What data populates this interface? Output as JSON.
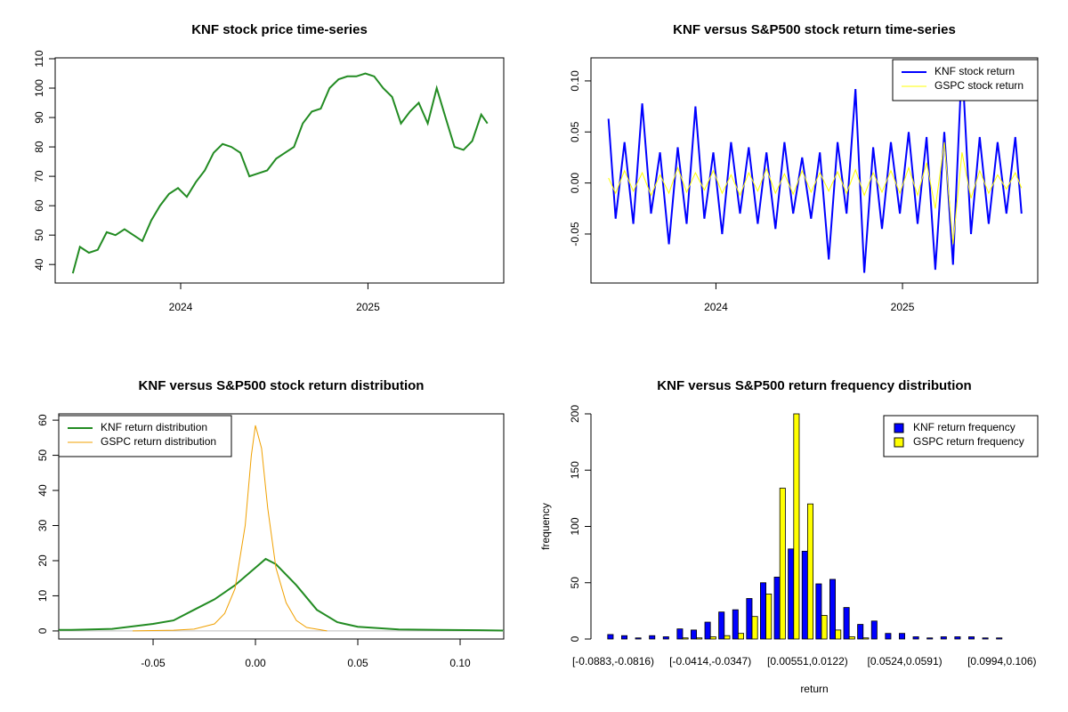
{
  "chart_data": [
    {
      "type": "line",
      "title": "KNF stock price time-series",
      "color": "#228b22",
      "x": [
        2023.424,
        2023.462,
        2023.51,
        2023.557,
        2023.605,
        2023.652,
        2023.7,
        2023.748,
        2023.795,
        2023.843,
        2023.89,
        2023.938,
        2023.986,
        2024.033,
        2024.081,
        2024.129,
        2024.176,
        2024.224,
        2024.271,
        2024.319,
        2024.367,
        2024.414,
        2024.462,
        2024.51,
        2024.557,
        2024.605,
        2024.652,
        2024.7,
        2024.748,
        2024.795,
        2024.843,
        2024.89,
        2024.938,
        2024.986,
        2025.033,
        2025.081,
        2025.129,
        2025.176,
        2025.224,
        2025.271,
        2025.319,
        2025.367,
        2025.414,
        2025.462,
        2025.51,
        2025.557,
        2025.605,
        2025.638
      ],
      "values": [
        37,
        46,
        44,
        45,
        51,
        50,
        52,
        50,
        48,
        55,
        60,
        64,
        66,
        63,
        68,
        72,
        78,
        81,
        80,
        78,
        70,
        71,
        72,
        76,
        78,
        80,
        88,
        92,
        93,
        100,
        103,
        104,
        104,
        105,
        104,
        100,
        97,
        88,
        92,
        95,
        88,
        100,
        90,
        80,
        79,
        82,
        91,
        88
      ],
      "xlim": [
        2023.33,
        2025.725
      ],
      "xticks": [
        2024,
        2025
      ],
      "ylim": [
        33.7,
        110.3
      ],
      "yticks": [
        40,
        50,
        60,
        70,
        80,
        90,
        100,
        110
      ]
    },
    {
      "type": "line",
      "title": "KNF versus S&P500 stock return time-series",
      "legend": "topright",
      "x": [
        2023.424,
        2023.462,
        2023.51,
        2023.557,
        2023.605,
        2023.652,
        2023.7,
        2023.748,
        2023.795,
        2023.843,
        2023.89,
        2023.938,
        2023.986,
        2024.033,
        2024.081,
        2024.129,
        2024.176,
        2024.224,
        2024.271,
        2024.319,
        2024.367,
        2024.414,
        2024.462,
        2024.51,
        2024.557,
        2024.605,
        2024.652,
        2024.7,
        2024.748,
        2024.795,
        2024.843,
        2024.89,
        2024.938,
        2024.986,
        2025.033,
        2025.081,
        2025.129,
        2025.176,
        2025.224,
        2025.271,
        2025.319,
        2025.367,
        2025.414,
        2025.462,
        2025.51,
        2025.557,
        2025.605,
        2025.638
      ],
      "series": [
        {
          "name": "KNF stock return",
          "color": "#0000ff",
          "width": 2,
          "values": [
            0.063,
            -0.035,
            0.04,
            -0.04,
            0.078,
            -0.03,
            0.03,
            -0.06,
            0.035,
            -0.04,
            0.075,
            -0.035,
            0.03,
            -0.05,
            0.04,
            -0.03,
            0.035,
            -0.04,
            0.03,
            -0.045,
            0.04,
            -0.03,
            0.025,
            -0.035,
            0.03,
            -0.075,
            0.04,
            -0.03,
            0.092,
            -0.088,
            0.035,
            -0.045,
            0.04,
            -0.03,
            0.05,
            -0.04,
            0.045,
            -0.085,
            0.05,
            -0.08,
            0.12,
            -0.05,
            0.045,
            -0.04,
            0.04,
            -0.03,
            0.045,
            -0.03
          ]
        },
        {
          "name": "GSPC stock return",
          "color": "#ffff00",
          "width": 1,
          "values": [
            0.005,
            -0.01,
            0.012,
            -0.008,
            0.01,
            -0.012,
            0.008,
            -0.01,
            0.015,
            -0.009,
            0.01,
            -0.007,
            0.012,
            -0.01,
            0.008,
            -0.012,
            0.01,
            -0.008,
            0.014,
            -0.01,
            0.009,
            -0.011,
            0.012,
            -0.009,
            0.01,
            -0.008,
            0.011,
            -0.01,
            0.013,
            -0.012,
            0.01,
            -0.009,
            0.012,
            -0.01,
            0.015,
            -0.012,
            0.02,
            -0.025,
            0.04,
            -0.06,
            0.03,
            -0.015,
            0.012,
            -0.01,
            0.008,
            -0.006,
            0.01,
            -0.005
          ]
        }
      ],
      "xlim": [
        2023.33,
        2025.725
      ],
      "xticks": [
        2024,
        2025
      ],
      "ylim": [
        -0.098,
        0.1226
      ],
      "yticks": [
        {
          "value": -0.05,
          "label": "-0.05"
        },
        {
          "value": 0,
          "label": "0.00"
        },
        {
          "value": 0.05,
          "label": "0.05"
        },
        {
          "value": 0.1,
          "label": "0.10"
        }
      ]
    },
    {
      "type": "line",
      "title": "KNF versus S&P500 stock return distribution",
      "legend": "topleft",
      "zero_line": true,
      "series": [
        {
          "name": "KNF return distribution",
          "color": "#228b22",
          "width": 2,
          "x": [
            -0.096,
            -0.09,
            -0.07,
            -0.05,
            -0.04,
            -0.03,
            -0.02,
            -0.01,
            0,
            0.005,
            0.01,
            0.02,
            0.03,
            0.04,
            0.05,
            0.07,
            0.09,
            0.11,
            0.121
          ],
          "values": [
            0.3,
            0.3,
            0.6,
            2,
            3,
            6,
            9,
            13,
            18,
            20.5,
            19,
            13,
            6,
            2.5,
            1.2,
            0.4,
            0.3,
            0.2,
            0.1
          ]
        },
        {
          "name": "GSPC return distribution",
          "color": "#f0a000",
          "width": 1,
          "x": [
            -0.06,
            -0.04,
            -0.03,
            -0.02,
            -0.015,
            -0.01,
            -0.005,
            -0.002,
            0,
            0.003,
            0.006,
            0.01,
            0.015,
            0.02,
            0.025,
            0.035
          ],
          "values": [
            0,
            0.2,
            0.5,
            2,
            5,
            12,
            30,
            50,
            58.5,
            52,
            35,
            18,
            8,
            3,
            1,
            0
          ]
        }
      ],
      "xlim": [
        -0.0961,
        0.1213
      ],
      "xticks": [
        {
          "value": -0.05,
          "label": "-0.05"
        },
        {
          "value": 0,
          "label": "0.00"
        },
        {
          "value": 0.05,
          "label": "0.05"
        },
        {
          "value": 0.1,
          "label": "0.10"
        }
      ],
      "ylim": [
        -2.3,
        61.8
      ],
      "yticks": [
        0,
        10,
        20,
        30,
        40,
        50,
        60
      ]
    },
    {
      "type": "bar",
      "title": "KNF versus S&P500 return frequency distribution",
      "legend": "topright",
      "x_label": "return",
      "y_label": "frequency",
      "categories": [
        "[-0.0883,-0.0816)",
        null,
        null,
        null,
        null,
        null,
        null,
        "[-0.0414,-0.0347)",
        null,
        null,
        null,
        null,
        null,
        null,
        "[0.00551,0.0122)",
        null,
        null,
        null,
        null,
        null,
        null,
        "[0.0524,0.0591)",
        null,
        null,
        null,
        null,
        null,
        null,
        "[0.0994,0.106)"
      ],
      "series": [
        {
          "name": "KNF return frequency",
          "color": "#0000ff",
          "values": [
            4,
            3,
            1,
            3,
            2,
            9,
            8,
            15,
            24,
            26,
            36,
            50,
            55,
            80,
            78,
            49,
            53,
            28,
            13,
            16,
            5,
            5,
            2,
            1,
            2,
            2,
            2,
            1,
            1
          ]
        },
        {
          "name": "GSPC return frequency",
          "color": "#ffff00",
          "values": [
            0,
            0,
            0,
            0,
            0,
            1,
            1,
            2,
            3,
            5,
            20,
            40,
            134,
            200,
            120,
            21,
            8,
            2,
            1,
            0,
            0,
            0,
            0,
            0,
            0,
            0,
            0,
            0,
            0
          ]
        }
      ],
      "ylim": [
        0,
        200
      ],
      "yticks": [
        0,
        50,
        100,
        150,
        200
      ]
    }
  ]
}
